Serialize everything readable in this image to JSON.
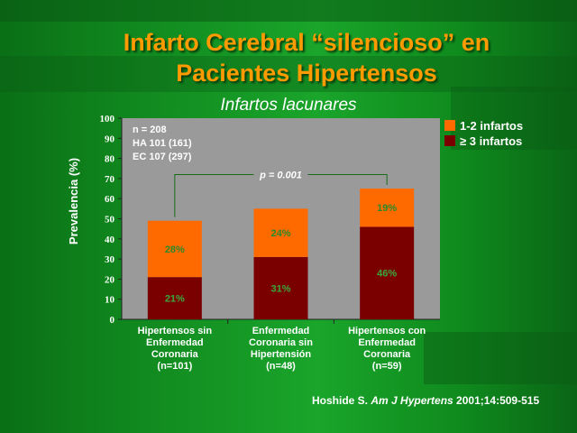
{
  "title_line1": "Infarto Cerebral “silencioso” en",
  "title_line2": "Pacientes Hipertensos",
  "chart_data": {
    "type": "bar",
    "stacked": true,
    "title": "Infartos lacunares",
    "ylabel": "Prevalencia (%)",
    "ylim": [
      0,
      100
    ],
    "yticks": [
      0,
      10,
      20,
      30,
      40,
      50,
      60,
      70,
      80,
      90,
      100
    ],
    "categories": [
      [
        "Hipertensos sin",
        "Enfermedad",
        "Coronaria",
        "(n=101)"
      ],
      [
        "Enfermedad",
        "Coronaria sin",
        "Hipertensión",
        "(n=48)"
      ],
      [
        "Hipertensos con",
        "Enfermedad",
        "Coronaria",
        "(n=59)"
      ]
    ],
    "series": [
      {
        "name": "≥ 3 infartos",
        "color": "#7a0000",
        "values": [
          21,
          31,
          46
        ],
        "labels": [
          "21%",
          "31%",
          "46%"
        ]
      },
      {
        "name": "1-2 infartos",
        "color": "#ff6a00",
        "values": [
          28,
          24,
          19
        ],
        "labels": [
          "28%",
          "24%",
          "19%"
        ]
      }
    ],
    "legend_order": [
      "1-2 infartos",
      "≥ 3 infartos"
    ],
    "legend_position": "right",
    "annotation": [
      "n = 208",
      "HA  101 (161)",
      "EC  107 (297)"
    ],
    "significance": "p = 0.001",
    "plot_background": "#9a9a9a",
    "grid": false
  },
  "citation": {
    "author": "Hoshide S. ",
    "journal": "Am J Hypertens",
    "ref": "  2001;14:509-515"
  }
}
